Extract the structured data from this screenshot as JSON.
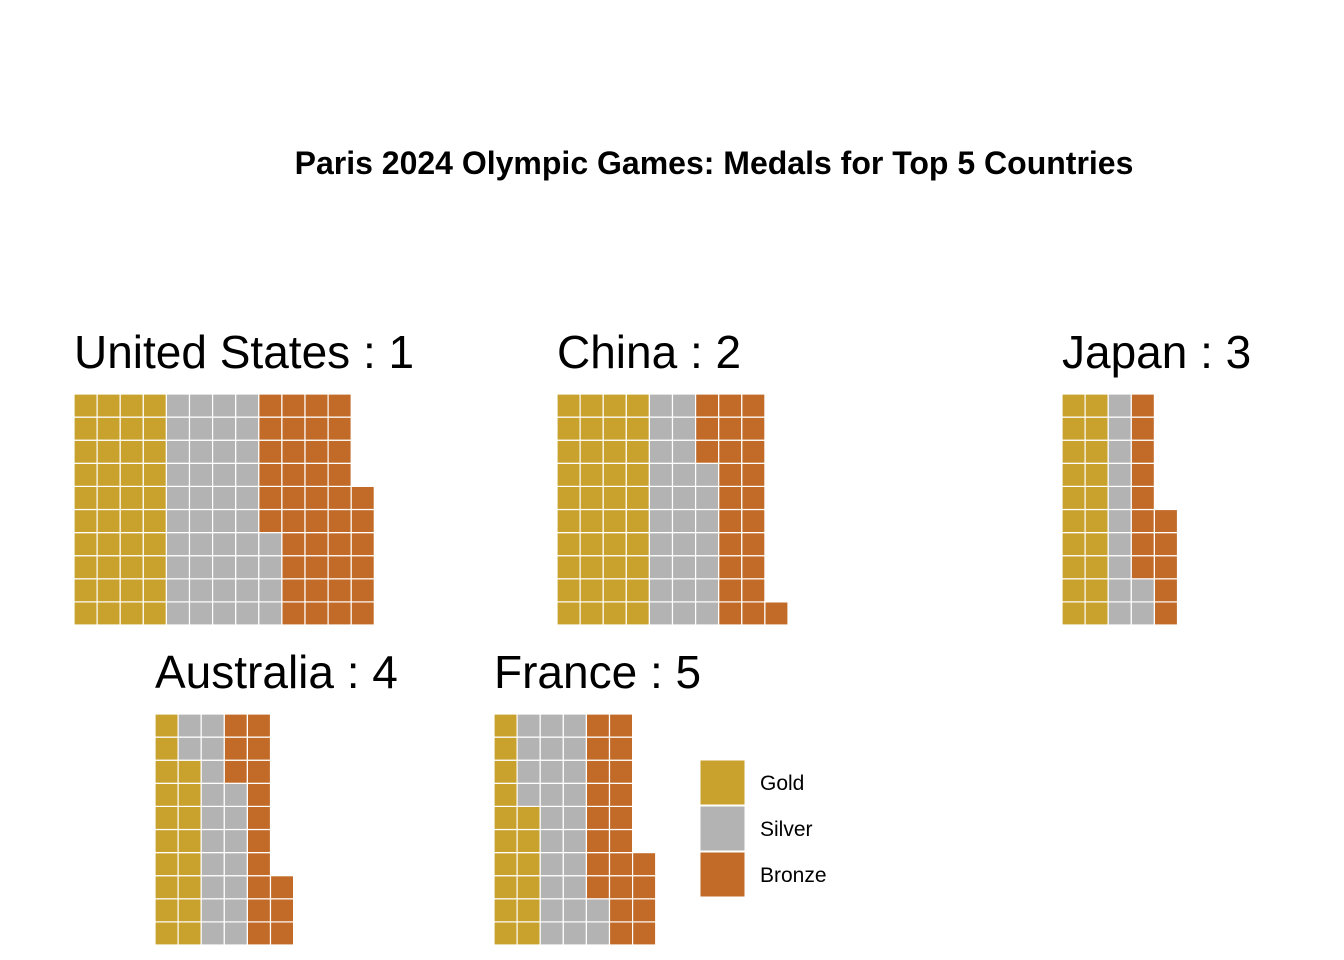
{
  "chart_data": {
    "type": "waffle",
    "title": "Paris 2024 Olympic Games: Medals for Top 5 Countries",
    "rows_per_column": 10,
    "fill_order": "column-major, bottom-up",
    "categories": [
      "Gold",
      "Silver",
      "Bronze"
    ],
    "colors": {
      "Gold": "#C9A22D",
      "Silver": "#B3B3B3",
      "Bronze": "#C26B28"
    },
    "panels": [
      {
        "country": "United States",
        "rank": 1,
        "label": "United States : 1",
        "values": [
          40,
          44,
          42
        ]
      },
      {
        "country": "China",
        "rank": 2,
        "label": "China : 2",
        "values": [
          40,
          27,
          24
        ]
      },
      {
        "country": "Japan",
        "rank": 3,
        "label": "Japan : 3",
        "values": [
          20,
          12,
          13
        ]
      },
      {
        "country": "Australia",
        "rank": 4,
        "label": "Australia : 4",
        "values": [
          18,
          19,
          16
        ]
      },
      {
        "country": "France",
        "rank": 5,
        "label": "France : 5",
        "values": [
          16,
          26,
          22
        ]
      }
    ],
    "legend": {
      "position": "bottom-center",
      "entries": [
        "Gold",
        "Silver",
        "Bronze"
      ]
    }
  }
}
